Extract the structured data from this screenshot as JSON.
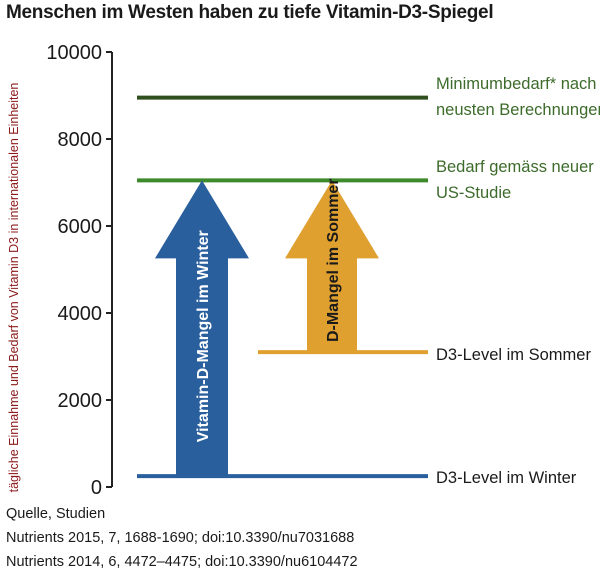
{
  "chart_data": {
    "type": "bar",
    "title": "Menschen im Westen haben zu tiefe Vitamin-D3-Spiegel",
    "ylabel": "tägliche Einnahme und Bedarf von Vitamin D3 in internationalen Einheiten",
    "ylim": [
      0,
      10000
    ],
    "yticks": [
      0,
      2000,
      4000,
      6000,
      8000,
      10000
    ],
    "grid": false,
    "reference_lines": [
      {
        "label_lines": [
          "Minimumbedarf* nach",
          "neusten Berechnungen"
        ],
        "value": 8950,
        "color": "#2f4f1e"
      },
      {
        "label_lines": [
          "Bedarf gemäss neuer",
          "US-Studie"
        ],
        "value": 7050,
        "color": "#3d8a2b"
      },
      {
        "label_lines": [
          "D3-Level im Sommer"
        ],
        "value": 3100,
        "color": "#e0a030"
      },
      {
        "label_lines": [
          "D3-Level im Winter"
        ],
        "value": 250,
        "color": "#2a5f9e"
      }
    ],
    "arrows": [
      {
        "label": "Vitamin-D-Mangel im Winter",
        "from": 250,
        "to": 7050,
        "color": "#2a5f9e"
      },
      {
        "label": "D-Mangel im Sommer",
        "from": 3100,
        "to": 7050,
        "color": "#e0a030"
      }
    ]
  },
  "source": {
    "heading": "Quelle, Studien",
    "lines": [
      "Nutrients 2015, 7, 1688-1690; doi:10.3390/nu7031688",
      "Nutrients 2014, 6, 4472–4475; doi:10.3390/nu6104472"
    ]
  },
  "colors": {
    "label_green": "#3d6b2b",
    "ylabel_red": "#8b1a1a"
  }
}
